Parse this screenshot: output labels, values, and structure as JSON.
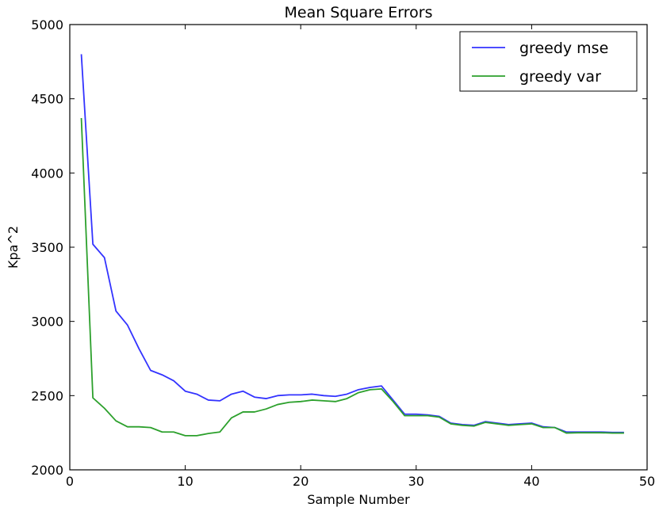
{
  "chart_data": {
    "type": "line",
    "title": "Mean Square Errors",
    "xlabel": "Sample Number",
    "ylabel": "Kpa^2",
    "xlim": [
      0,
      50
    ],
    "ylim": [
      2000,
      5000
    ],
    "xticks": [
      "0",
      "10",
      "20",
      "30",
      "40",
      "50"
    ],
    "yticks": [
      "2000",
      "2500",
      "3000",
      "3500",
      "4000",
      "4500",
      "5000"
    ],
    "grid": false,
    "legend_position": "top-right",
    "x": [
      1,
      2,
      3,
      4,
      5,
      6,
      7,
      8,
      9,
      10,
      11,
      12,
      13,
      14,
      15,
      16,
      17,
      18,
      19,
      20,
      21,
      22,
      23,
      24,
      25,
      26,
      27,
      28,
      29,
      30,
      31,
      32,
      33,
      34,
      35,
      36,
      37,
      38,
      39,
      40,
      41,
      42,
      43,
      44,
      45,
      46,
      47,
      48
    ],
    "series": [
      {
        "name": "greedy mse",
        "color": "#3333ff",
        "values": [
          4800,
          3520,
          3430,
          3070,
          2975,
          2815,
          2670,
          2640,
          2600,
          2530,
          2510,
          2470,
          2465,
          2510,
          2530,
          2490,
          2480,
          2500,
          2505,
          2505,
          2510,
          2500,
          2495,
          2510,
          2540,
          2555,
          2565,
          2470,
          2375,
          2375,
          2370,
          2360,
          2315,
          2305,
          2300,
          2325,
          2315,
          2305,
          2310,
          2315,
          2290,
          2285,
          2255,
          2255,
          2255,
          2255,
          2252,
          2252
        ]
      },
      {
        "name": "greedy var",
        "color": "#2ca02c",
        "values": [
          4370,
          2485,
          2415,
          2330,
          2290,
          2290,
          2285,
          2255,
          2255,
          2230,
          2230,
          2245,
          2255,
          2350,
          2390,
          2390,
          2410,
          2440,
          2455,
          2460,
          2470,
          2465,
          2460,
          2480,
          2520,
          2540,
          2545,
          2460,
          2365,
          2365,
          2365,
          2355,
          2310,
          2300,
          2295,
          2320,
          2310,
          2300,
          2305,
          2310,
          2285,
          2285,
          2248,
          2250,
          2250,
          2250,
          2248,
          2248
        ]
      }
    ]
  }
}
